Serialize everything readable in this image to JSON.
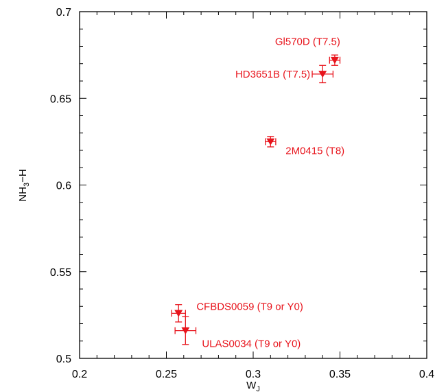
{
  "chart_data": {
    "type": "scatter",
    "title": "",
    "xlabel": {
      "main": "W",
      "sub": "J"
    },
    "ylabel": {
      "pre": "NH",
      "sub": "3",
      "post": "−H"
    },
    "xlim": [
      0.2,
      0.4
    ],
    "ylim": [
      0.5,
      0.7
    ],
    "x_ticks": [
      "0.2",
      "0.25",
      "0.3",
      "0.35",
      "0.4"
    ],
    "y_ticks": [
      "0.5",
      "0.55",
      "0.6",
      "0.65",
      "0.7"
    ],
    "grid": false,
    "color": "#e8141c",
    "marker": "down-triangle",
    "points": [
      {
        "label": "Gl570D (T7.5)",
        "x": 0.347,
        "y": 0.672,
        "xerr": 0.003,
        "yerr": 0.003
      },
      {
        "label": "HD3651B (T7.5)",
        "x": 0.34,
        "y": 0.664,
        "xerr": 0.006,
        "yerr": 0.005
      },
      {
        "label": "2M0415 (T8)",
        "x": 0.31,
        "y": 0.625,
        "xerr": 0.003,
        "yerr": 0.003
      },
      {
        "label": "CFBDS0059 (T9 or Y0)",
        "x": 0.257,
        "y": 0.526,
        "xerr": 0.004,
        "yerr": 0.005
      },
      {
        "label": "ULAS0034 (T9 or Y0)",
        "x": 0.261,
        "y": 0.516,
        "xerr": 0.006,
        "yerr": 0.008
      }
    ]
  }
}
